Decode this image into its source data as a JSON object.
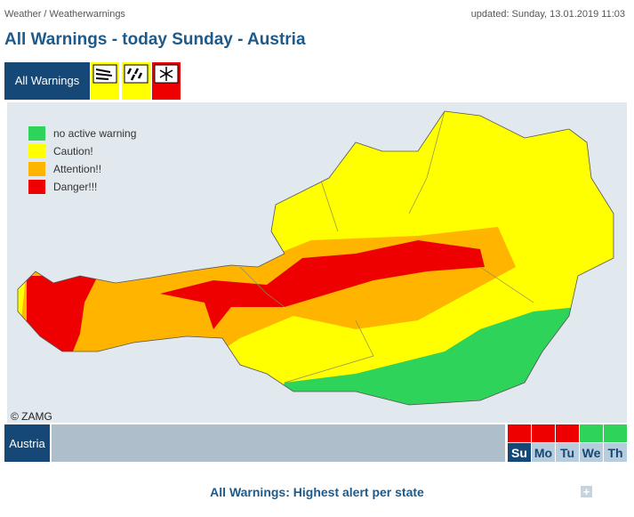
{
  "header": {
    "breadcrumb": "Weather / Weatherwarnings",
    "updated": "updated: Sunday, 13.01.2019 11:03",
    "title": "All Warnings - today Sunday - Austria"
  },
  "tabs": {
    "all": "All Warnings"
  },
  "legend": [
    {
      "label": "no active warning",
      "color": "#2ed45a"
    },
    {
      "label": "Caution!",
      "color": "#ffff00"
    },
    {
      "label": "Attention!!",
      "color": "#ffb400"
    },
    {
      "label": "Danger!!!",
      "color": "#ee0000"
    }
  ],
  "copyright": "© ZAMG",
  "region": "Austria",
  "days": [
    {
      "label": "Su",
      "color": "#ee0000"
    },
    {
      "label": "Mo",
      "color": "#ee0000"
    },
    {
      "label": "Tu",
      "color": "#ee0000"
    },
    {
      "label": "We",
      "color": "#2ed45a"
    },
    {
      "label": "Th",
      "color": "#2ed45a"
    }
  ],
  "footer": "All Warnings: Highest alert per state"
}
